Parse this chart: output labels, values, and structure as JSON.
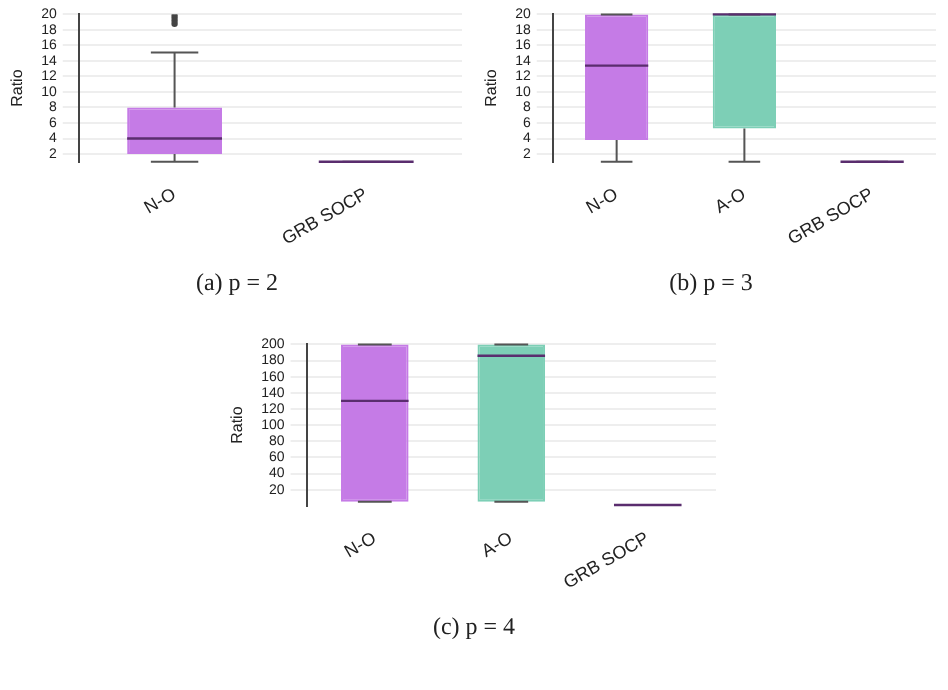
{
  "chart_data": [
    {
      "type": "box",
      "title": "(a) p = 2",
      "ylabel": "Ratio",
      "categories": [
        "N-O",
        "GRB SOCP"
      ],
      "colors": [
        "#c57be6",
        "#555555"
      ],
      "ylim": [
        1,
        20
      ],
      "yticks": [
        2,
        4,
        6,
        8,
        10,
        12,
        14,
        16,
        18,
        20
      ],
      "grid": "y",
      "boxes": [
        {
          "low": 1,
          "q1": 2,
          "median": 4,
          "q3": 8,
          "high": 15.1,
          "outliers": [
            18.8,
            19.2,
            19.6,
            20
          ]
        },
        {
          "low": 1,
          "q1": 1,
          "median": 1,
          "q3": 1,
          "high": 1
        }
      ]
    },
    {
      "type": "box",
      "title": "(b) p = 3",
      "ylabel": "Ratio",
      "categories": [
        "N-O",
        "A-O",
        "GRB SOCP"
      ],
      "colors": [
        "#c57be6",
        "#7dcfb6",
        "#555555"
      ],
      "ylim": [
        1,
        20
      ],
      "yticks": [
        2,
        4,
        6,
        8,
        10,
        12,
        14,
        16,
        18,
        20
      ],
      "grid": "y",
      "boxes": [
        {
          "low": 1,
          "q1": 3.8,
          "median": 13.4,
          "q3": 20,
          "high": 20
        },
        {
          "low": 1,
          "q1": 5.3,
          "median": 20,
          "q3": 20,
          "high": 20
        },
        {
          "low": 1,
          "q1": 1,
          "median": 1,
          "q3": 1,
          "high": 1
        }
      ]
    },
    {
      "type": "box",
      "title": "(c) p = 4",
      "ylabel": "Ratio",
      "categories": [
        "N-O",
        "A-O",
        "GRB SOCP"
      ],
      "colors": [
        "#c57be6",
        "#7dcfb6",
        "#555555"
      ],
      "ylim": [
        0,
        200
      ],
      "yticks": [
        20,
        40,
        60,
        80,
        100,
        120,
        140,
        160,
        180,
        200
      ],
      "grid": "y",
      "boxes": [
        {
          "low": 5,
          "q1": 5,
          "median": 130,
          "q3": 200,
          "high": 200
        },
        {
          "low": 5,
          "q1": 5,
          "median": 186,
          "q3": 200,
          "high": 200
        },
        {
          "low": 1,
          "q1": 1,
          "median": 1,
          "q3": 1,
          "high": 1
        }
      ]
    }
  ]
}
